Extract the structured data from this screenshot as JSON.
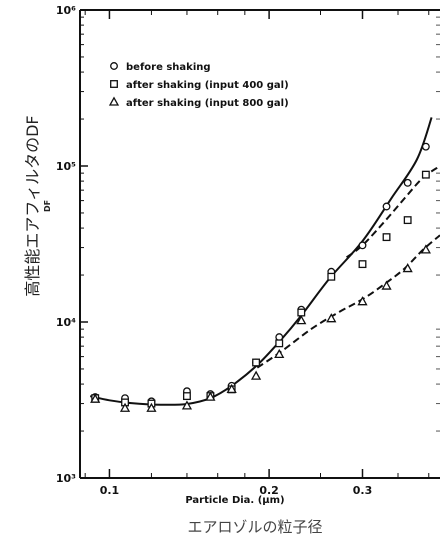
{
  "chart_data": {
    "type": "scatter",
    "title": "",
    "xlabel": "Particle Dia. (µm)",
    "caption": "エアロゾルの粒子径",
    "ylabel_jp": "高性能エアフィルタのDF",
    "ylabel": "DF",
    "x_scale": "log",
    "y_scale": "log",
    "xlim": [
      0.088,
      0.42
    ],
    "ylim": [
      1000,
      1000000
    ],
    "x_ticks": [
      {
        "value": 0.1,
        "label": "0.1"
      },
      {
        "value": 0.2,
        "label": "0.2"
      },
      {
        "value": 0.3,
        "label": "0.3"
      }
    ],
    "y_ticks": [
      {
        "value": 1000,
        "label": "10³"
      },
      {
        "value": 10000,
        "label": "10⁴"
      },
      {
        "value": 100000,
        "label": "10⁵"
      },
      {
        "value": 1000000,
        "label": "10⁶"
      }
    ],
    "legend_position": "top-left",
    "grid": false,
    "series": [
      {
        "name": "before shaking",
        "marker": "circle",
        "line": "solid",
        "points": [
          [
            0.094,
            3300
          ],
          [
            0.107,
            3250
          ],
          [
            0.12,
            3100
          ],
          [
            0.14,
            3600
          ],
          [
            0.155,
            3450
          ],
          [
            0.17,
            3900
          ],
          [
            0.189,
            5500
          ],
          [
            0.209,
            8000
          ],
          [
            0.23,
            12000
          ],
          [
            0.262,
            21000
          ],
          [
            0.3,
            31000
          ],
          [
            0.333,
            55000
          ],
          [
            0.365,
            78000
          ],
          [
            0.395,
            133000
          ]
        ],
        "curve": [
          [
            0.092,
            3350
          ],
          [
            0.1,
            3150
          ],
          [
            0.11,
            3020
          ],
          [
            0.125,
            2950
          ],
          [
            0.14,
            2980
          ],
          [
            0.155,
            3250
          ],
          [
            0.17,
            3900
          ],
          [
            0.19,
            5300
          ],
          [
            0.21,
            7600
          ],
          [
            0.23,
            11000
          ],
          [
            0.26,
            19000
          ],
          [
            0.3,
            33000
          ],
          [
            0.34,
            62000
          ],
          [
            0.38,
            110000
          ],
          [
            0.405,
            205000
          ]
        ]
      },
      {
        "name": "after shaking (input 400 gal)",
        "marker": "square",
        "line": "dashed",
        "points": [
          [
            0.094,
            3250
          ],
          [
            0.107,
            3050
          ],
          [
            0.12,
            3000
          ],
          [
            0.14,
            3350
          ],
          [
            0.155,
            3350
          ],
          [
            0.17,
            3700
          ],
          [
            0.189,
            5500
          ],
          [
            0.209,
            7300
          ],
          [
            0.23,
            11500
          ],
          [
            0.262,
            19500
          ],
          [
            0.3,
            23500
          ],
          [
            0.333,
            35000
          ],
          [
            0.365,
            45000
          ],
          [
            0.395,
            88000
          ]
        ],
        "curve": [
          [
            0.28,
            26000
          ],
          [
            0.3,
            31000
          ],
          [
            0.33,
            44000
          ],
          [
            0.36,
            62000
          ],
          [
            0.39,
            84000
          ],
          [
            0.42,
            100000
          ]
        ]
      },
      {
        "name": "after shaking (input 800 gal)",
        "marker": "triangle",
        "line": "dashed",
        "points": [
          [
            0.094,
            3200
          ],
          [
            0.107,
            2800
          ],
          [
            0.12,
            2800
          ],
          [
            0.14,
            2900
          ],
          [
            0.155,
            3300
          ],
          [
            0.17,
            3700
          ],
          [
            0.189,
            4500
          ],
          [
            0.209,
            6200
          ],
          [
            0.23,
            10200
          ],
          [
            0.262,
            10500
          ],
          [
            0.3,
            13500
          ],
          [
            0.333,
            17000
          ],
          [
            0.365,
            22000
          ],
          [
            0.395,
            29000
          ]
        ],
        "curve": [
          [
            0.19,
            5100
          ],
          [
            0.21,
            6400
          ],
          [
            0.24,
            9000
          ],
          [
            0.27,
            11500
          ],
          [
            0.3,
            14000
          ],
          [
            0.33,
            17500
          ],
          [
            0.36,
            22000
          ],
          [
            0.39,
            29000
          ],
          [
            0.42,
            36000
          ]
        ]
      }
    ]
  }
}
